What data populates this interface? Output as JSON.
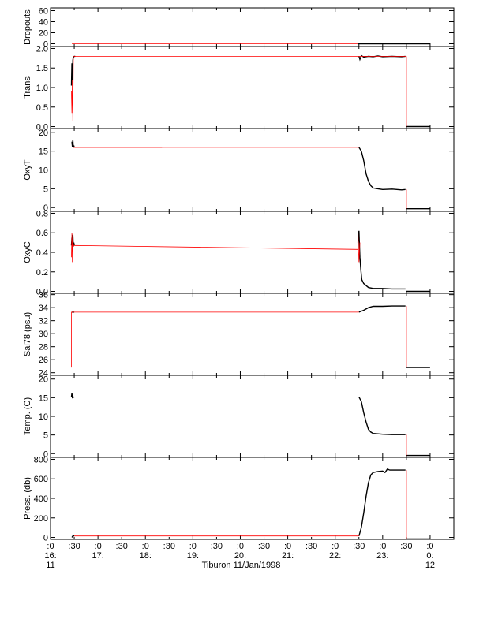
{
  "chart_data": {
    "type": "line",
    "title": "",
    "xlabel": "Tiburon 11/Jan/1998",
    "x_ticks": [
      {
        "t": 0.0,
        "line1": ":0",
        "line2": "16:",
        "line3": "11"
      },
      {
        "t": 0.5,
        "line1": ":30",
        "line2": "",
        "line3": ""
      },
      {
        "t": 1.0,
        "line1": ":0",
        "line2": "17:",
        "line3": ""
      },
      {
        "t": 1.5,
        "line1": ":30",
        "line2": "",
        "line3": ""
      },
      {
        "t": 2.0,
        "line1": ":0",
        "line2": "18:",
        "line3": ""
      },
      {
        "t": 2.5,
        "line1": ":30",
        "line2": "",
        "line3": ""
      },
      {
        "t": 3.0,
        "line1": ":0",
        "line2": "19:",
        "line3": ""
      },
      {
        "t": 3.5,
        "line1": ":30",
        "line2": "",
        "line3": ""
      },
      {
        "t": 4.0,
        "line1": ":0",
        "line2": "20:",
        "line3": ""
      },
      {
        "t": 4.5,
        "line1": ":30",
        "line2": "",
        "line3": ""
      },
      {
        "t": 5.0,
        "line1": ":0",
        "line2": "21:",
        "line3": ""
      },
      {
        "t": 5.5,
        "line1": ":30",
        "line2": "",
        "line3": ""
      },
      {
        "t": 6.0,
        "line1": ":0",
        "line2": "22:",
        "line3": ""
      },
      {
        "t": 6.5,
        "line1": ":30",
        "line2": "",
        "line3": ""
      },
      {
        "t": 7.0,
        "line1": ":0",
        "line2": "23:",
        "line3": ""
      },
      {
        "t": 7.5,
        "line1": ":30",
        "line2": "",
        "line3": ""
      },
      {
        "t": 8.0,
        "line1": ":0",
        "line2": "0:",
        "line3": "12"
      }
    ],
    "xlim": [
      0,
      8.5
    ],
    "colors": {
      "raw": "#000000",
      "filtered": "#ff0000"
    },
    "panels": [
      {
        "ylabel": "Dropouts",
        "ylim": [
          -5,
          65
        ],
        "yticks": [
          {
            "v": 60,
            "label": "60"
          },
          {
            "v": 40,
            "label": "40"
          },
          {
            "v": 20,
            "label": "20"
          },
          {
            "v": 0,
            "label": "0"
          }
        ],
        "series": [
          {
            "color": "raw",
            "x": [
              6.48,
              8.0
            ],
            "y": [
              0,
              0
            ]
          },
          {
            "color": "filtered",
            "x": [
              0.45,
              6.48
            ],
            "y": [
              0,
              0
            ]
          }
        ]
      },
      {
        "ylabel": "Trans",
        "ylim": [
          -0.05,
          2.05
        ],
        "yticks": [
          {
            "v": 2.0,
            "label": "2.0"
          },
          {
            "v": 1.5,
            "label": "1.5"
          },
          {
            "v": 1.0,
            "label": "1.0"
          },
          {
            "v": 0.5,
            "label": "0.5"
          },
          {
            "v": 0.0,
            "label": "0.0"
          }
        ],
        "series": [
          {
            "color": "raw",
            "x": [
              0.44,
              0.45,
              0.46,
              0.47,
              0.48,
              0.5,
              0.52
            ],
            "y": [
              1.05,
              1.62,
              1.2,
              1.7,
              1.78,
              1.8,
              1.8
            ]
          },
          {
            "color": "raw",
            "x": [
              6.5,
              6.52,
              6.55,
              6.6,
              6.7,
              6.8,
              6.9,
              7.0,
              7.2,
              7.4,
              7.48
            ],
            "y": [
              1.8,
              1.72,
              1.82,
              1.78,
              1.8,
              1.79,
              1.81,
              1.79,
              1.8,
              1.79,
              1.8
            ]
          },
          {
            "color": "raw",
            "x": [
              7.5,
              8.0
            ],
            "y": [
              0.0,
              0.0
            ]
          },
          {
            "color": "filtered",
            "x": [
              0.44,
              0.45,
              0.46,
              0.47,
              0.48
            ],
            "y": [
              0.9,
              0.35,
              1.2,
              0.15,
              1.75
            ]
          },
          {
            "color": "filtered",
            "x": [
              0.48,
              7.5
            ],
            "y": [
              1.8,
              1.8
            ]
          },
          {
            "color": "filtered",
            "x": [
              7.5,
              7.5
            ],
            "y": [
              1.8,
              0.0
            ]
          }
        ]
      },
      {
        "ylabel": "OxyT",
        "ylim": [
          -1,
          21
        ],
        "yticks": [
          {
            "v": 20,
            "label": "20"
          },
          {
            "v": 15,
            "label": "15"
          },
          {
            "v": 10,
            "label": "10"
          },
          {
            "v": 5,
            "label": "5"
          },
          {
            "v": 0,
            "label": "0"
          }
        ],
        "series": [
          {
            "color": "raw",
            "x": [
              0.45,
              0.46,
              0.47,
              0.48,
              0.49,
              0.5
            ],
            "y": [
              17.5,
              16.2,
              18.0,
              16.0,
              16.5,
              16.0
            ]
          },
          {
            "color": "raw",
            "x": [
              6.5,
              6.55,
              6.6,
              6.65,
              6.7,
              6.75,
              6.8,
              6.9,
              7.0,
              7.2,
              7.4,
              7.48
            ],
            "y": [
              16.0,
              15.0,
              12.5,
              9.0,
              7.0,
              5.8,
              5.2,
              5.0,
              4.8,
              4.9,
              4.7,
              4.8
            ]
          },
          {
            "color": "raw",
            "x": [
              7.5,
              8.0
            ],
            "y": [
              -0.3,
              -0.3
            ]
          },
          {
            "color": "filtered",
            "x": [
              0.48,
              2.35
            ],
            "y": [
              16.0,
              16.0
            ]
          },
          {
            "color": "filtered",
            "x": [
              0.48,
              6.5
            ],
            "y": [
              16.0,
              16.0
            ]
          },
          {
            "color": "filtered",
            "x": [
              7.5,
              7.5
            ],
            "y": [
              4.8,
              -0.3
            ]
          }
        ]
      },
      {
        "ylabel": "OxyC",
        "ylim": [
          -0.02,
          0.82
        ],
        "yticks": [
          {
            "v": 0.8,
            "label": "0.8"
          },
          {
            "v": 0.6,
            "label": "0.6"
          },
          {
            "v": 0.4,
            "label": "0.4"
          },
          {
            "v": 0.2,
            "label": "0.2"
          },
          {
            "v": 0.0,
            "label": "0.0"
          }
        ],
        "series": [
          {
            "color": "raw",
            "x": [
              0.44,
              0.45,
              0.46,
              0.47,
              0.48,
              0.49,
              0.5
            ],
            "y": [
              0.47,
              0.55,
              0.44,
              0.58,
              0.46,
              0.5,
              0.47
            ]
          },
          {
            "color": "raw",
            "x": [
              6.48,
              6.5,
              6.52,
              6.54,
              6.56,
              6.6,
              6.65,
              6.7,
              6.8,
              6.9,
              7.0,
              7.2,
              7.48
            ],
            "y": [
              0.5,
              0.62,
              0.35,
              0.22,
              0.12,
              0.08,
              0.06,
              0.04,
              0.03,
              0.03,
              0.03,
              0.025,
              0.025
            ]
          },
          {
            "color": "raw",
            "x": [
              7.5,
              8.0
            ],
            "y": [
              0.0,
              0.0
            ]
          },
          {
            "color": "filtered",
            "x": [
              0.44,
              0.45,
              0.46,
              0.47,
              0.48
            ],
            "y": [
              0.35,
              0.6,
              0.3,
              0.55,
              0.47
            ]
          },
          {
            "color": "filtered",
            "x": [
              0.48,
              6.48
            ],
            "y": [
              0.47,
              0.43
            ]
          },
          {
            "color": "filtered",
            "x": [
              6.48,
              6.5,
              6.52
            ],
            "y": [
              0.6,
              0.3,
              0.5
            ]
          }
        ]
      },
      {
        "ylabel": "Sal78 (psu)",
        "ylim": [
          23.6,
          36.2
        ],
        "yticks": [
          {
            "v": 36,
            "label": "36"
          },
          {
            "v": 34,
            "label": "34"
          },
          {
            "v": 32,
            "label": "32"
          },
          {
            "v": 30,
            "label": "30"
          },
          {
            "v": 28,
            "label": "28"
          },
          {
            "v": 26,
            "label": "26"
          },
          {
            "v": 24,
            "label": "24"
          }
        ],
        "series": [
          {
            "color": "raw",
            "x": [
              0.45,
              0.5
            ],
            "y": [
              33.3,
              33.3
            ]
          },
          {
            "color": "raw",
            "x": [
              6.5,
              6.6,
              6.7,
              6.8,
              7.0,
              7.2,
              7.48
            ],
            "y": [
              33.3,
              33.6,
              34.0,
              34.2,
              34.2,
              34.25,
              34.25
            ]
          },
          {
            "color": "raw",
            "x": [
              7.5,
              8.0
            ],
            "y": [
              24.8,
              24.8
            ]
          },
          {
            "color": "filtered",
            "x": [
              0.44,
              0.44,
              0.45
            ],
            "y": [
              24.8,
              33.3,
              33.3
            ]
          },
          {
            "color": "filtered",
            "x": [
              0.45,
              6.5
            ],
            "y": [
              33.3,
              33.3
            ]
          },
          {
            "color": "filtered",
            "x": [
              7.5,
              7.5
            ],
            "y": [
              34.25,
              24.8
            ]
          }
        ]
      },
      {
        "ylabel": "Temp. (C)",
        "ylim": [
          -1,
          21
        ],
        "yticks": [
          {
            "v": 20,
            "label": "20"
          },
          {
            "v": 15,
            "label": "15"
          },
          {
            "v": 10,
            "label": "10"
          },
          {
            "v": 5,
            "label": "5"
          },
          {
            "v": 0,
            "label": "0"
          }
        ],
        "series": [
          {
            "color": "raw",
            "x": [
              0.44,
              0.45,
              0.46,
              0.5
            ],
            "y": [
              15.2,
              16.2,
              15.0,
              15.2
            ]
          },
          {
            "color": "raw",
            "x": [
              6.5,
              6.55,
              6.6,
              6.65,
              6.7,
              6.75,
              6.8,
              6.9,
              7.0,
              7.2,
              7.48
            ],
            "y": [
              15.2,
              14.0,
              11.0,
              8.5,
              6.5,
              5.8,
              5.4,
              5.3,
              5.2,
              5.1,
              5.1
            ]
          },
          {
            "color": "raw",
            "x": [
              7.5,
              8.0
            ],
            "y": [
              -0.5,
              -0.5
            ]
          },
          {
            "color": "filtered",
            "x": [
              0.45,
              6.5
            ],
            "y": [
              15.2,
              15.2
            ]
          },
          {
            "color": "filtered",
            "x": [
              7.5,
              7.5
            ],
            "y": [
              5.1,
              -0.5
            ]
          }
        ]
      },
      {
        "ylabel": "Press. (db)",
        "ylim": [
          -20,
          820
        ],
        "yticks": [
          {
            "v": 800,
            "label": "800"
          },
          {
            "v": 600,
            "label": "600"
          },
          {
            "v": 400,
            "label": "400"
          },
          {
            "v": 200,
            "label": "200"
          },
          {
            "v": 0,
            "label": "0"
          }
        ],
        "series": [
          {
            "color": "raw",
            "x": [
              0.45,
              0.47,
              0.5
            ],
            "y": [
              0,
              15,
              15
            ]
          },
          {
            "color": "raw",
            "x": [
              6.5,
              6.55,
              6.6,
              6.65,
              6.7,
              6.75,
              6.8,
              6.85,
              6.9,
              7.0,
              7.05,
              7.1,
              7.15,
              7.2,
              7.48
            ],
            "y": [
              15,
              100,
              250,
              420,
              560,
              640,
              665,
              670,
              675,
              680,
              665,
              700,
              690,
              690,
              690
            ]
          },
          {
            "color": "raw",
            "x": [
              7.5,
              8.0
            ],
            "y": [
              -15,
              -15
            ]
          },
          {
            "color": "filtered",
            "x": [
              0.5,
              6.5
            ],
            "y": [
              15,
              15
            ]
          },
          {
            "color": "filtered",
            "x": [
              7.5,
              7.5
            ],
            "y": [
              690,
              -15
            ]
          }
        ]
      }
    ]
  }
}
